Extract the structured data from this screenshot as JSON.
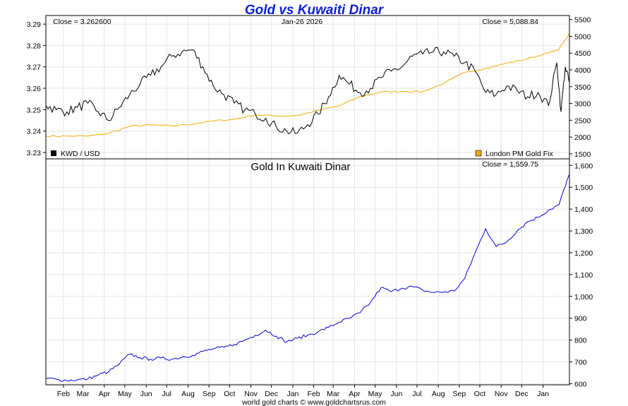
{
  "title": "Gold vs Kuwaiti Dinar",
  "footer": "world gold charts © www.goldchartsrus.com",
  "colors": {
    "title": "#0b1fd6",
    "kwd_line": "#000000",
    "gold_fix_line": "#f0a800",
    "gold_kwd_line": "#0000dd",
    "grid": "#e4e4ec",
    "frame": "#000000"
  },
  "chart_data": [
    {
      "type": "line",
      "panel": "top",
      "left_axis_ticks": [
        3.23,
        3.24,
        3.25,
        3.26,
        3.27,
        3.28,
        3.29
      ],
      "right_axis_ticks": [
        1500,
        2000,
        2500,
        3000,
        3500,
        4000,
        4500,
        5000,
        5500
      ],
      "right_axis_labels": [
        "1500",
        "2000",
        "2500",
        "3000",
        "3500",
        "4000",
        "4500",
        "5000",
        "5500"
      ],
      "ylim_left": [
        3.227,
        3.294
      ],
      "ylim_right": [
        1350,
        5620
      ],
      "x_tick_labels": [
        "Feb",
        "Mar",
        "Apr",
        "May",
        "Jun",
        "Jul",
        "Aug",
        "Sep",
        "Oct",
        "Nov",
        "Dec",
        "Jan",
        "Feb",
        "Mar",
        "Apr",
        "May",
        "Jun",
        "Jul",
        "Aug",
        "Sep",
        "Oct",
        "Nov",
        "Dec",
        "Jan"
      ],
      "annotations": {
        "close_left": "Close = 3.262600",
        "date": "Jan-26  2026",
        "close_right": "Close = 5,088.84"
      },
      "legend": [
        {
          "label": "KWD / USD",
          "color": "#000000",
          "position": "bottom-left"
        },
        {
          "label": "London PM Gold Fix",
          "color": "#f0a800",
          "position": "bottom-right"
        }
      ],
      "series": [
        {
          "name": "KWD / USD",
          "axis": "left",
          "x": [
            0,
            0.5,
            1,
            1.5,
            2,
            2.5,
            3,
            3.5,
            4,
            4.5,
            5,
            5.5,
            6,
            6.5,
            7,
            7.5,
            8,
            8.5,
            9,
            9.5,
            10,
            10.5,
            11,
            11.5,
            12,
            12.5,
            13,
            13.5,
            14,
            14.5,
            15,
            15.5,
            16,
            16.5,
            17,
            17.5,
            18,
            18.5,
            19,
            19.5,
            20,
            20.5,
            21,
            21.5,
            22,
            22.5,
            23,
            23.5,
            24,
            24.4,
            24.6,
            24.8,
            25.0
          ],
          "values": [
            3.252,
            3.25,
            3.249,
            3.251,
            3.253,
            3.249,
            3.245,
            3.251,
            3.257,
            3.262,
            3.266,
            3.27,
            3.275,
            3.277,
            3.278,
            3.27,
            3.261,
            3.257,
            3.253,
            3.25,
            3.248,
            3.246,
            3.242,
            3.24,
            3.239,
            3.243,
            3.248,
            3.256,
            3.266,
            3.262,
            3.258,
            3.26,
            3.265,
            3.268,
            3.27,
            3.275,
            3.276,
            3.277,
            3.277,
            3.275,
            3.272,
            3.268,
            3.258,
            3.257,
            3.261,
            3.259,
            3.256,
            3.258,
            3.252,
            3.272,
            3.249,
            3.27,
            3.2626
          ]
        },
        {
          "name": "London PM Gold Fix",
          "axis": "right",
          "x": [
            0,
            1,
            2,
            3,
            4,
            5,
            6,
            7,
            8,
            9,
            10,
            11,
            12,
            13,
            14,
            15,
            16,
            17,
            18,
            19,
            20,
            21,
            22,
            23,
            24,
            24.5,
            25.0
          ],
          "values": [
            2030,
            2030,
            2030,
            2110,
            2320,
            2360,
            2330,
            2390,
            2480,
            2530,
            2660,
            2630,
            2640,
            2790,
            2930,
            3200,
            3340,
            3360,
            3350,
            3600,
            3920,
            4050,
            4200,
            4330,
            4510,
            4610,
            5088.84
          ]
        }
      ]
    },
    {
      "type": "line",
      "panel": "bottom",
      "title": "Gold In Kuwaiti Dinar",
      "close_label": "Close = 1,559.75",
      "y_ticks": [
        600,
        700,
        800,
        900,
        1000,
        1100,
        1200,
        1300,
        1400,
        1500,
        1600
      ],
      "y_tick_labels": [
        "600",
        "700",
        "800",
        "900",
        "1,000",
        "1,100",
        "1,200",
        "1,300",
        "1,400",
        "1,500",
        "1,600"
      ],
      "ylim": [
        595,
        1630
      ],
      "x_tick_labels": [
        "Feb",
        "Mar",
        "Apr",
        "May",
        "Jun",
        "Jul",
        "Aug",
        "Sep",
        "Oct",
        "Nov",
        "Dec",
        "Jan",
        "Feb",
        "Mar",
        "Apr",
        "May",
        "Jun",
        "Jul",
        "Aug",
        "Sep",
        "Oct",
        "Nov",
        "Dec",
        "Jan"
      ],
      "series": [
        {
          "name": "Gold In Kuwaiti Dinar",
          "x": [
            0,
            0.5,
            1,
            1.5,
            2,
            2.5,
            3,
            3.5,
            4,
            4.5,
            5,
            5.5,
            6,
            6.5,
            7,
            7.5,
            8,
            8.5,
            9,
            9.5,
            10,
            10.5,
            11,
            11.5,
            12,
            12.5,
            13,
            13.5,
            14,
            14.5,
            15,
            15.5,
            16,
            16.5,
            17,
            17.5,
            18,
            18.5,
            19,
            19.5,
            20,
            20.5,
            21,
            21.5,
            22,
            22.5,
            23,
            23.5,
            24,
            24.5,
            25.0
          ],
          "values": [
            625,
            620,
            615,
            618,
            622,
            640,
            655,
            690,
            735,
            720,
            712,
            718,
            712,
            722,
            730,
            748,
            760,
            766,
            780,
            800,
            822,
            845,
            818,
            792,
            808,
            822,
            838,
            858,
            882,
            900,
            925,
            972,
            1040,
            1022,
            1038,
            1045,
            1028,
            1018,
            1020,
            1025,
            1082,
            1200,
            1310,
            1228,
            1250,
            1300,
            1342,
            1362,
            1395,
            1420,
            1559.75
          ]
        }
      ]
    }
  ]
}
